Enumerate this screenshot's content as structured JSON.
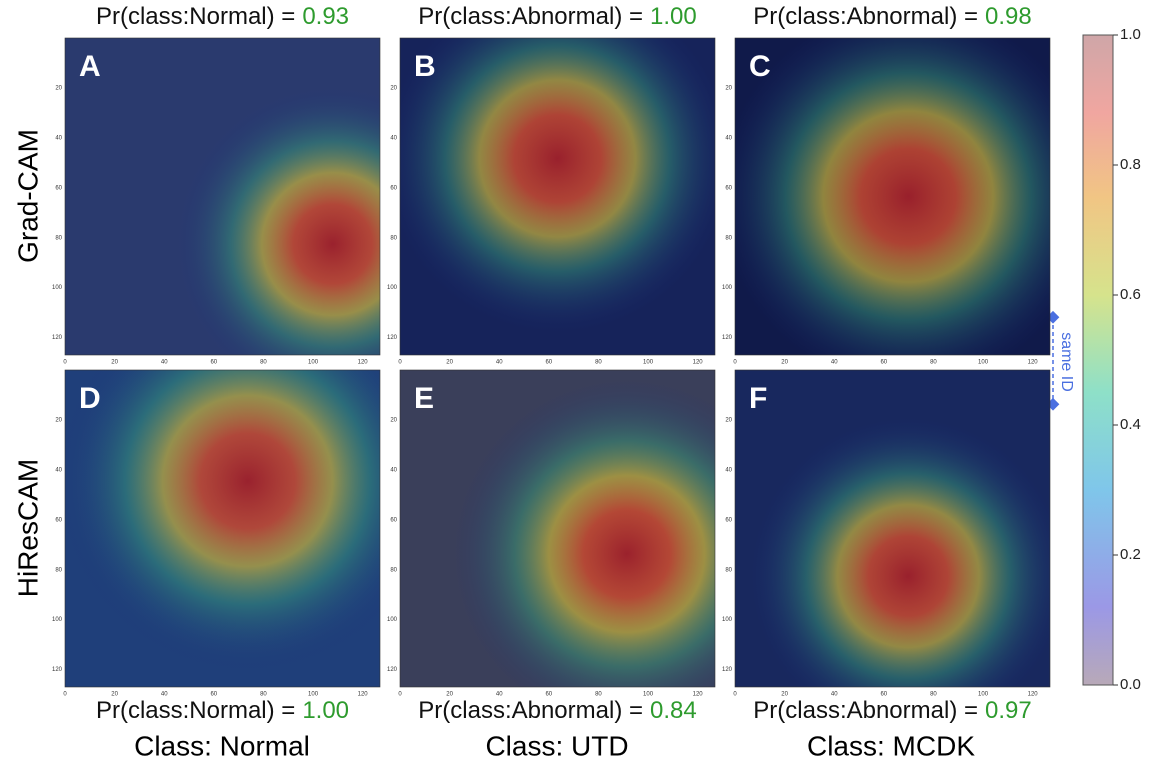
{
  "row_labels": [
    "Grad-CAM",
    "HiResCAM"
  ],
  "column_labels": [
    "Class: Normal",
    "Class: UTD",
    "Class: MCDK"
  ],
  "panels": [
    {
      "letter": "A",
      "caption": "Pr(class:Normal) =",
      "probability": "0.93"
    },
    {
      "letter": "B",
      "caption": "Pr(class:Abnormal) =",
      "probability": "1.00"
    },
    {
      "letter": "C",
      "caption": "Pr(class:Abnormal) =",
      "probability": "0.98"
    },
    {
      "letter": "D",
      "caption": "Pr(class:Normal) =",
      "probability": "1.00"
    },
    {
      "letter": "E",
      "caption": "Pr(class:Abnormal) =",
      "probability": "0.84"
    },
    {
      "letter": "F",
      "caption": "Pr(class:Abnormal) =",
      "probability": "0.97"
    }
  ],
  "image_axis_ticks": [
    "0",
    "20",
    "40",
    "60",
    "80",
    "100",
    "120"
  ],
  "colorbar": {
    "ticks": [
      "0.0",
      "0.2",
      "0.4",
      "0.6",
      "0.8",
      "1.0"
    ]
  },
  "annotation": "same ID"
}
